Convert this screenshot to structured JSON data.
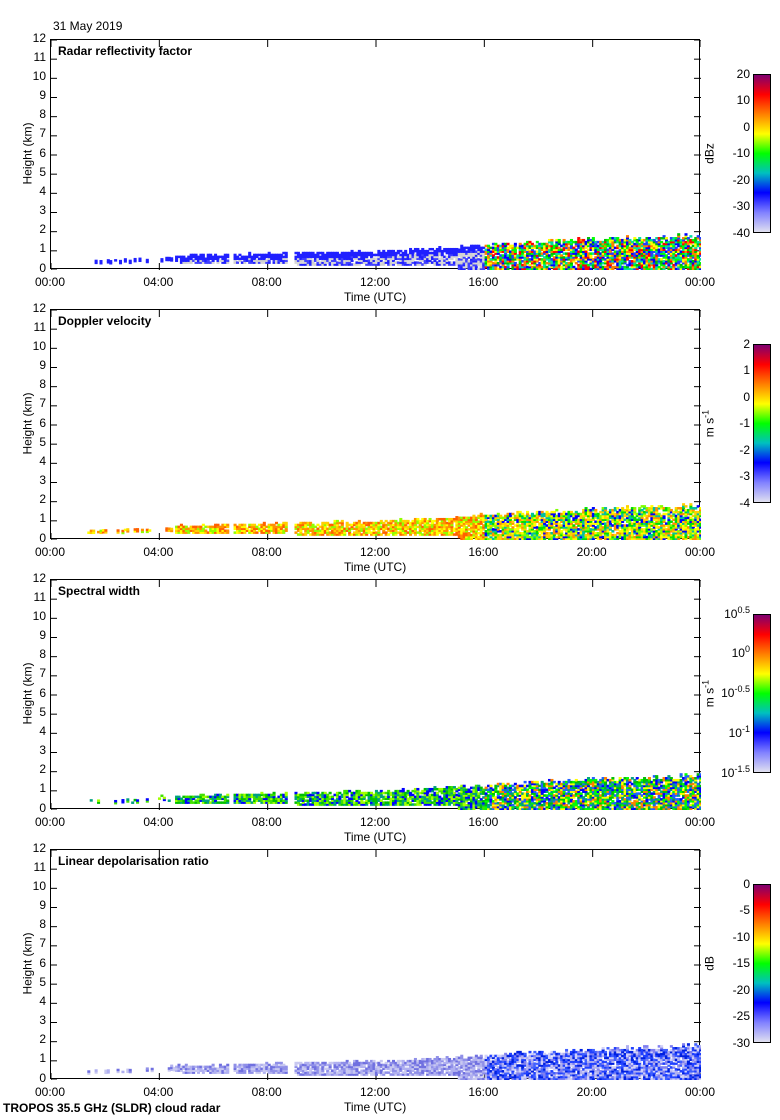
{
  "date": "31 May 2019",
  "footer": "TROPOS 35.5 GHz (SLDR) cloud radar",
  "chart_data": {
    "type": "heatmap",
    "xlabel": "Time (UTC)",
    "ylabel": "Height (km)",
    "xlim_hours": [
      0,
      24
    ],
    "ylim": [
      0,
      12
    ],
    "x_ticks": [
      "00:00",
      "04:00",
      "08:00",
      "12:00",
      "16:00",
      "20:00",
      "00:00"
    ],
    "y_ticks": [
      "0",
      "1",
      "2",
      "3",
      "4",
      "5",
      "6",
      "7",
      "8",
      "9",
      "10",
      "11",
      "12"
    ],
    "echo_start_hour": 1.25,
    "cloud_top_km": {
      "hours": [
        1.25,
        3,
        5,
        7,
        9,
        12,
        14,
        16,
        18,
        20,
        22,
        24
      ],
      "km": [
        0.55,
        0.6,
        0.75,
        0.8,
        0.9,
        0.95,
        1.1,
        1.3,
        1.45,
        1.6,
        1.7,
        1.8
      ]
    },
    "panels": [
      {
        "title": "Radar reflectivity factor",
        "unit": "dBz",
        "colorbar_ticks": [
          "20",
          "10",
          "0",
          "-10",
          "-20",
          "-30",
          "-40"
        ],
        "colorbar": [
          "#800070",
          "#ff0000",
          "#ff8000",
          "#ffff00",
          "#00ff00",
          "#00c0c0",
          "#0000ff",
          "#8080ff",
          "#e0e0f0"
        ],
        "echo_colors_early": [
          "#d8d8d8",
          "#d0d0d0",
          "#2020ff",
          "#4040ff"
        ],
        "echo_colors_late": [
          "#0000ff",
          "#00ff00",
          "#00c000",
          "#ffff00",
          "#ff8000",
          "#ff0000",
          "#2040ff",
          "#00e0a0"
        ]
      },
      {
        "title": "Doppler velocity",
        "unit": "m s",
        "unit_exp": "-1",
        "colorbar_ticks": [
          "2",
          "1",
          "0",
          "-1",
          "-2",
          "-3",
          "-4"
        ],
        "colorbar": [
          "#800070",
          "#ff0000",
          "#ff8000",
          "#ffff00",
          "#00ff00",
          "#00c0c0",
          "#0000ff",
          "#8080ff",
          "#e0e0f0"
        ],
        "echo_colors_early": [
          "#ffd000",
          "#ff9000",
          "#ffff00",
          "#ff6000",
          "#90ff00"
        ],
        "echo_colors_late": [
          "#ffff00",
          "#ffd000",
          "#80ff00",
          "#00e000",
          "#ff9000",
          "#00c0a0",
          "#0000ff"
        ]
      },
      {
        "title": "Spectral width",
        "unit": "m s",
        "unit_exp": "-1",
        "colorbar_ticks": [
          {
            "base": "10",
            "exp": "0.5"
          },
          {
            "base": "10",
            "exp": "0"
          },
          {
            "base": "10",
            "exp": "-0.5"
          },
          {
            "base": "10",
            "exp": "-1"
          },
          {
            "base": "10",
            "exp": "-1.5"
          }
        ],
        "colorbar": [
          "#800070",
          "#ff0000",
          "#ff8000",
          "#ffff00",
          "#00ff00",
          "#00c0c0",
          "#0000ff",
          "#8080ff",
          "#e0e0f0"
        ],
        "echo_colors_early": [
          "#00c000",
          "#40e000",
          "#0000ff",
          "#00a080",
          "#a0ff00"
        ],
        "echo_colors_late": [
          "#00c000",
          "#0000ff",
          "#00ff00",
          "#2060ff",
          "#00a080",
          "#ffff00",
          "#ff8000"
        ]
      },
      {
        "title": "Linear depolarisation ratio",
        "unit": "dB",
        "colorbar_ticks": [
          "0",
          "-5",
          "-10",
          "-15",
          "-20",
          "-25",
          "-30"
        ],
        "colorbar": [
          "#800070",
          "#ff0000",
          "#ff8000",
          "#ffff00",
          "#00ff00",
          "#00c0c0",
          "#0000ff",
          "#8080ff",
          "#e0e0f0"
        ],
        "echo_colors_early": [
          "#b0b0f0",
          "#9090e8",
          "#c8c8f0",
          "#7070e0"
        ],
        "echo_colors_late": [
          "#2040ff",
          "#4060ff",
          "#8080f0",
          "#b0b0f0",
          "#0020e0",
          "#d0d0f8"
        ]
      }
    ]
  }
}
